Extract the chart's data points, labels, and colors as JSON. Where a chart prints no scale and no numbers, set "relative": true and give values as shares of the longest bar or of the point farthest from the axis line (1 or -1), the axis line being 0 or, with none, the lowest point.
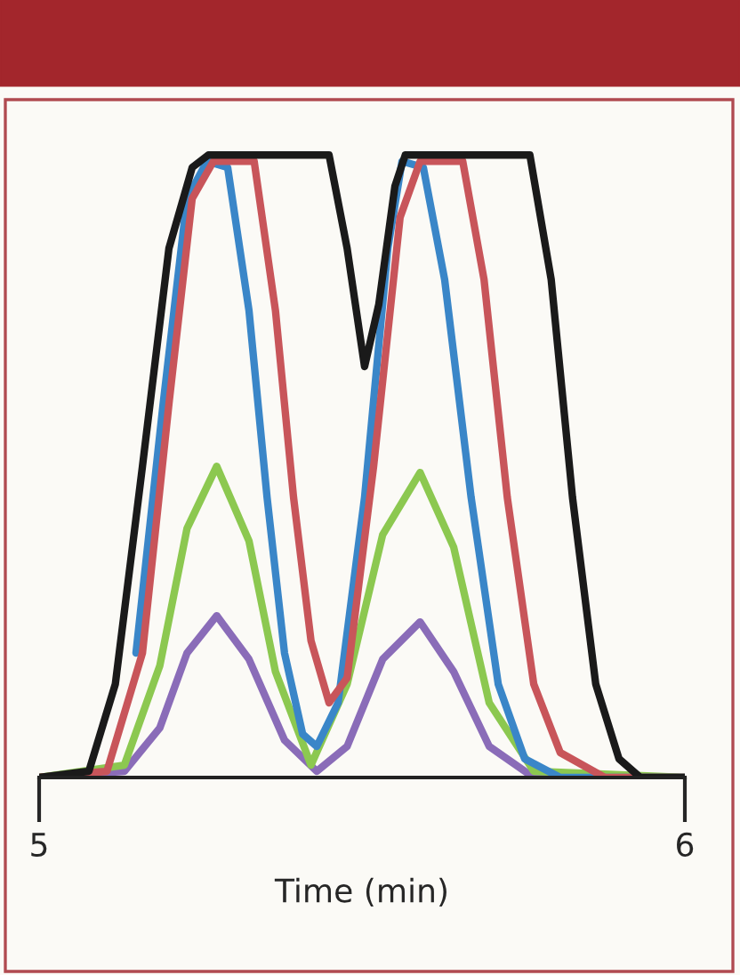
{
  "chart_data": {
    "type": "line",
    "relative": true,
    "xlabel": "Time (min)",
    "xlim": [
      5,
      6
    ],
    "xticks": [
      5,
      6
    ],
    "line_style": "solid",
    "marker": "none",
    "series": [
      {
        "color": "#8a6cb8",
        "x": [
          5.0,
          5.132,
          5.187,
          5.229,
          5.275,
          5.325,
          5.38,
          5.43,
          5.477,
          5.532,
          5.59,
          5.642,
          5.697,
          5.766,
          6.0
        ],
        "values": [
          0,
          0.01,
          0.08,
          0.2,
          0.26,
          0.19,
          0.06,
          0.01,
          0.05,
          0.19,
          0.25,
          0.17,
          0.05,
          0,
          0
        ]
      },
      {
        "color": "#8cc850",
        "x": [
          5.0,
          5.132,
          5.187,
          5.229,
          5.275,
          5.325,
          5.366,
          5.421,
          5.477,
          5.532,
          5.59,
          5.642,
          5.697,
          5.766,
          6.0
        ],
        "values": [
          0,
          0.02,
          0.18,
          0.4,
          0.5,
          0.38,
          0.17,
          0.02,
          0.15,
          0.39,
          0.49,
          0.37,
          0.12,
          0.01,
          0
        ]
      },
      {
        "color": "#3a86c8",
        "x": [
          5.15,
          5.192,
          5.229,
          5.26,
          5.292,
          5.325,
          5.353,
          5.38,
          5.408,
          5.43,
          5.463,
          5.504,
          5.54,
          5.562,
          5.595,
          5.628,
          5.669,
          5.711,
          5.752,
          5.807,
          6.0
        ],
        "values": [
          0.2,
          0.6,
          0.93,
          0.99,
          0.98,
          0.75,
          0.45,
          0.2,
          0.07,
          0.05,
          0.12,
          0.45,
          0.85,
          0.99,
          0.98,
          0.8,
          0.45,
          0.15,
          0.03,
          0,
          0
        ]
      },
      {
        "color": "#c8555a",
        "x": [
          5.0,
          5.105,
          5.16,
          5.201,
          5.237,
          5.27,
          5.333,
          5.366,
          5.394,
          5.421,
          5.449,
          5.477,
          5.518,
          5.559,
          5.59,
          5.656,
          5.689,
          5.725,
          5.766,
          5.807,
          5.876,
          6.0
        ],
        "values": [
          0,
          0.01,
          0.2,
          0.6,
          0.93,
          0.99,
          0.99,
          0.75,
          0.45,
          0.22,
          0.12,
          0.16,
          0.5,
          0.9,
          0.99,
          0.99,
          0.8,
          0.45,
          0.15,
          0.04,
          0,
          0
        ]
      },
      {
        "color": "#1a1a1a",
        "x": [
          5.0,
          5.077,
          5.118,
          5.16,
          5.201,
          5.237,
          5.262,
          5.449,
          5.477,
          5.504,
          5.526,
          5.551,
          5.567,
          5.76,
          5.793,
          5.826,
          5.862,
          5.898,
          5.931,
          6.0
        ],
        "values": [
          0,
          0.01,
          0.15,
          0.5,
          0.85,
          0.98,
          1,
          1,
          0.85,
          0.66,
          0.76,
          0.95,
          1,
          1,
          0.8,
          0.45,
          0.15,
          0.03,
          0,
          0
        ]
      }
    ]
  }
}
